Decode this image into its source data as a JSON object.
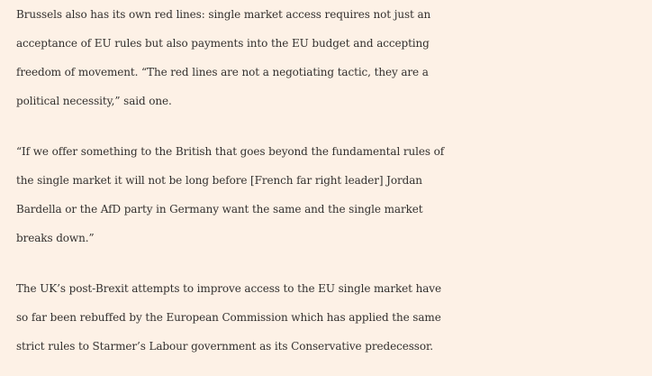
{
  "article": {
    "paragraphs": [
      {
        "lines": [
          "Brussels also has its own red lines: single market access requires not just an",
          "acceptance of EU rules but also payments into the EU budget and accepting",
          "freedom of movement. “The red lines are not a negotiating tactic, they are a",
          "political necessity,” said one."
        ]
      },
      {
        "lines": [
          "“If we offer something to the British that goes beyond the fundamental rules of",
          "the single market it will not be long before [French far right leader] Jordan",
          "Bardella or the AfD party in Germany want the same and the single market",
          "breaks down.”"
        ]
      },
      {
        "lines": [
          "The UK’s post-Brexit attempts to improve access to the EU single market have",
          "so far been rebuffed by the European Commission which has applied the same",
          "strict rules to Starmer’s Labour government as its Conservative predecessor."
        ]
      }
    ]
  }
}
